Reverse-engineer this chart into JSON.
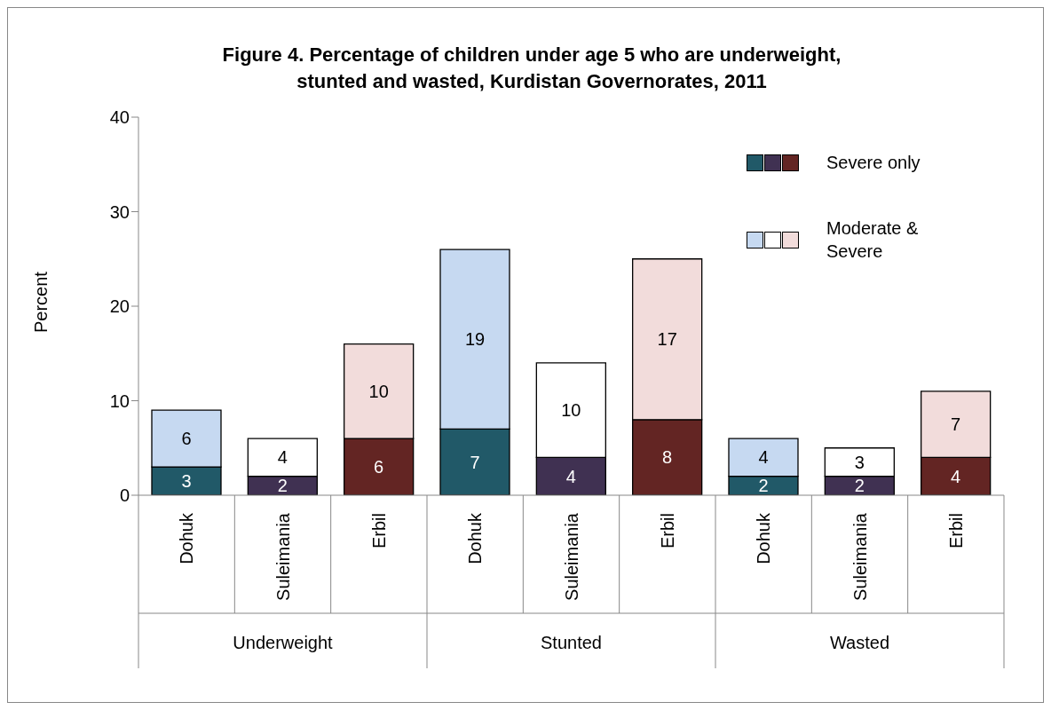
{
  "chart_data": {
    "type": "bar",
    "title": "Figure 4. Percentage of children under age 5 who are underweight, stunted and wasted, Kurdistan Governorates, 2011",
    "ylabel": "Percent",
    "categories": [
      "Dohuk",
      "Suleimania",
      "Erbil",
      "Dohuk",
      "Suleimania",
      "Erbil",
      "Dohuk",
      "Suleimania",
      "Erbil"
    ],
    "annotations": [
      "Underweight",
      "Stunted",
      "Wasted"
    ],
    "stacked": true,
    "ylim": [
      0,
      40
    ],
    "yticks": [
      0,
      10,
      20,
      30,
      40
    ],
    "grid": false,
    "legend": "top right",
    "data_labels": true,
    "series": [
      {
        "name": "Severe only",
        "colors": [
          "#215968",
          "#403152",
          "#632523",
          "#215968",
          "#403152",
          "#632523",
          "#215968",
          "#403152",
          "#632523"
        ],
        "values": [
          3,
          2,
          6,
          7,
          4,
          8,
          2,
          2,
          4
        ]
      },
      {
        "name": "Moderate & Severe",
        "colors": [
          "#c6d9f1",
          "#ffffff",
          "#f2dcdb",
          "#c6d9f1",
          "#ffffff",
          "#f2dcdb",
          "#c6d9f1",
          "#ffffff",
          "#f2dcdb"
        ],
        "values": [
          6,
          4,
          10,
          19,
          10,
          17,
          4,
          3,
          7
        ]
      }
    ]
  }
}
